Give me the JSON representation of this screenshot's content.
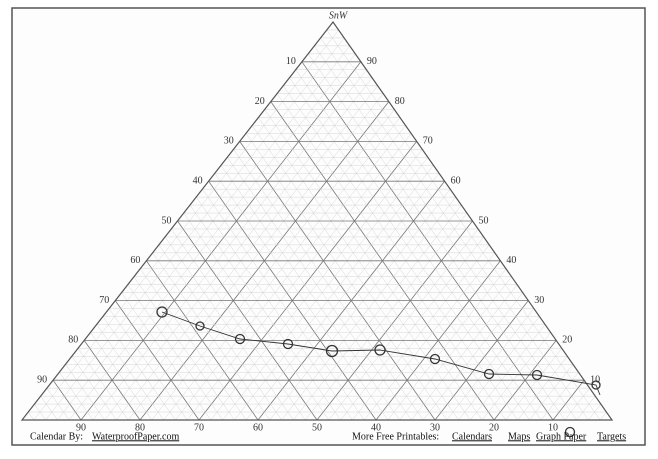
{
  "top_label": "SnW",
  "left_ticks": [
    10,
    20,
    30,
    40,
    50,
    60,
    70,
    80,
    90
  ],
  "right_ticks": [
    90,
    80,
    70,
    60,
    50,
    40,
    30,
    20,
    10
  ],
  "bottom_ticks": [
    90,
    80,
    70,
    60,
    50,
    40,
    30,
    20,
    10
  ],
  "footer": {
    "credit_prefix": "Calendar By:",
    "credit_link": "WaterproofPaper.com",
    "more_prefix": "More Free Printables:",
    "links": [
      "Calendars",
      "Maps",
      "Graph Paper",
      "Targets"
    ]
  }
}
